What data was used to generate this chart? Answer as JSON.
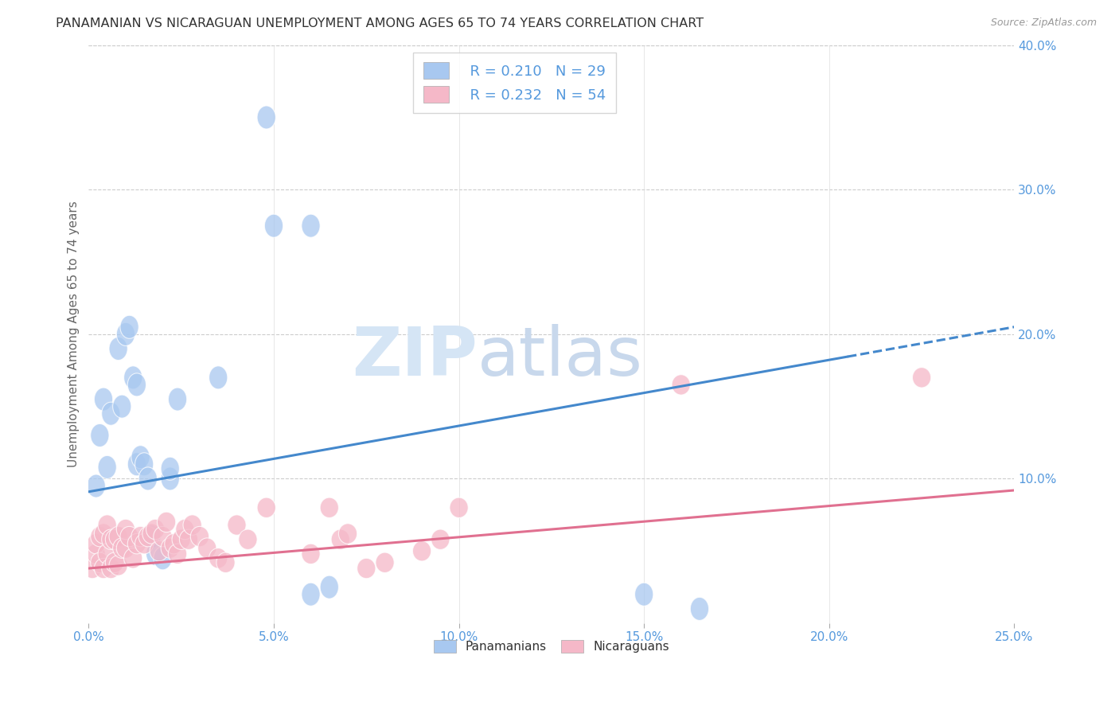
{
  "title": "PANAMANIAN VS NICARAGUAN UNEMPLOYMENT AMONG AGES 65 TO 74 YEARS CORRELATION CHART",
  "source": "Source: ZipAtlas.com",
  "ylabel": "Unemployment Among Ages 65 to 74 years",
  "xlim": [
    0.0,
    0.25
  ],
  "ylim": [
    0.0,
    0.4
  ],
  "xticks": [
    0.0,
    0.05,
    0.1,
    0.15,
    0.2,
    0.25
  ],
  "yticks_right": [
    0.1,
    0.2,
    0.3,
    0.4
  ],
  "watermark_zip": "ZIP",
  "watermark_atlas": "atlas",
  "legend_R1": "R = 0.210",
  "legend_N1": "N = 29",
  "legend_R2": "R = 0.232",
  "legend_N2": "N = 54",
  "blue_color": "#A8C8F0",
  "pink_color": "#F5B8C8",
  "blue_line_color": "#4488CC",
  "pink_line_color": "#E07090",
  "axis_label_color": "#5599DD",
  "title_color": "#333333",
  "pan_x": [
    0.002,
    0.003,
    0.004,
    0.005,
    0.006,
    0.008,
    0.009,
    0.01,
    0.011,
    0.012,
    0.013,
    0.013,
    0.014,
    0.015,
    0.016,
    0.017,
    0.018,
    0.02,
    0.022,
    0.022,
    0.024,
    0.035,
    0.048,
    0.05,
    0.06,
    0.06,
    0.065,
    0.15,
    0.165
  ],
  "pan_y": [
    0.095,
    0.13,
    0.155,
    0.108,
    0.145,
    0.19,
    0.15,
    0.2,
    0.205,
    0.17,
    0.165,
    0.11,
    0.115,
    0.11,
    0.1,
    0.06,
    0.048,
    0.045,
    0.1,
    0.107,
    0.155,
    0.17,
    0.35,
    0.275,
    0.275,
    0.02,
    0.025,
    0.02,
    0.01
  ],
  "nic_x": [
    0.001,
    0.002,
    0.002,
    0.003,
    0.003,
    0.004,
    0.004,
    0.005,
    0.005,
    0.006,
    0.006,
    0.007,
    0.007,
    0.008,
    0.008,
    0.009,
    0.01,
    0.01,
    0.011,
    0.012,
    0.013,
    0.014,
    0.015,
    0.016,
    0.017,
    0.018,
    0.019,
    0.02,
    0.021,
    0.022,
    0.023,
    0.024,
    0.025,
    0.026,
    0.027,
    0.028,
    0.03,
    0.032,
    0.035,
    0.037,
    0.04,
    0.043,
    0.048,
    0.06,
    0.065,
    0.068,
    0.07,
    0.075,
    0.08,
    0.09,
    0.095,
    0.1,
    0.16,
    0.225
  ],
  "nic_y": [
    0.038,
    0.048,
    0.055,
    0.042,
    0.06,
    0.038,
    0.062,
    0.048,
    0.068,
    0.038,
    0.058,
    0.042,
    0.058,
    0.04,
    0.06,
    0.052,
    0.052,
    0.065,
    0.06,
    0.045,
    0.055,
    0.06,
    0.055,
    0.06,
    0.062,
    0.065,
    0.05,
    0.06,
    0.07,
    0.052,
    0.055,
    0.048,
    0.058,
    0.065,
    0.058,
    0.068,
    0.06,
    0.052,
    0.045,
    0.042,
    0.068,
    0.058,
    0.08,
    0.048,
    0.08,
    0.058,
    0.062,
    0.038,
    0.042,
    0.05,
    0.058,
    0.08,
    0.165,
    0.17
  ],
  "blue_line_x0": 0.0,
  "blue_line_y0": 0.091,
  "blue_line_x1": 0.25,
  "blue_line_y1": 0.205,
  "pink_line_x0": 0.0,
  "pink_line_y0": 0.038,
  "pink_line_x1": 0.25,
  "pink_line_y1": 0.092
}
